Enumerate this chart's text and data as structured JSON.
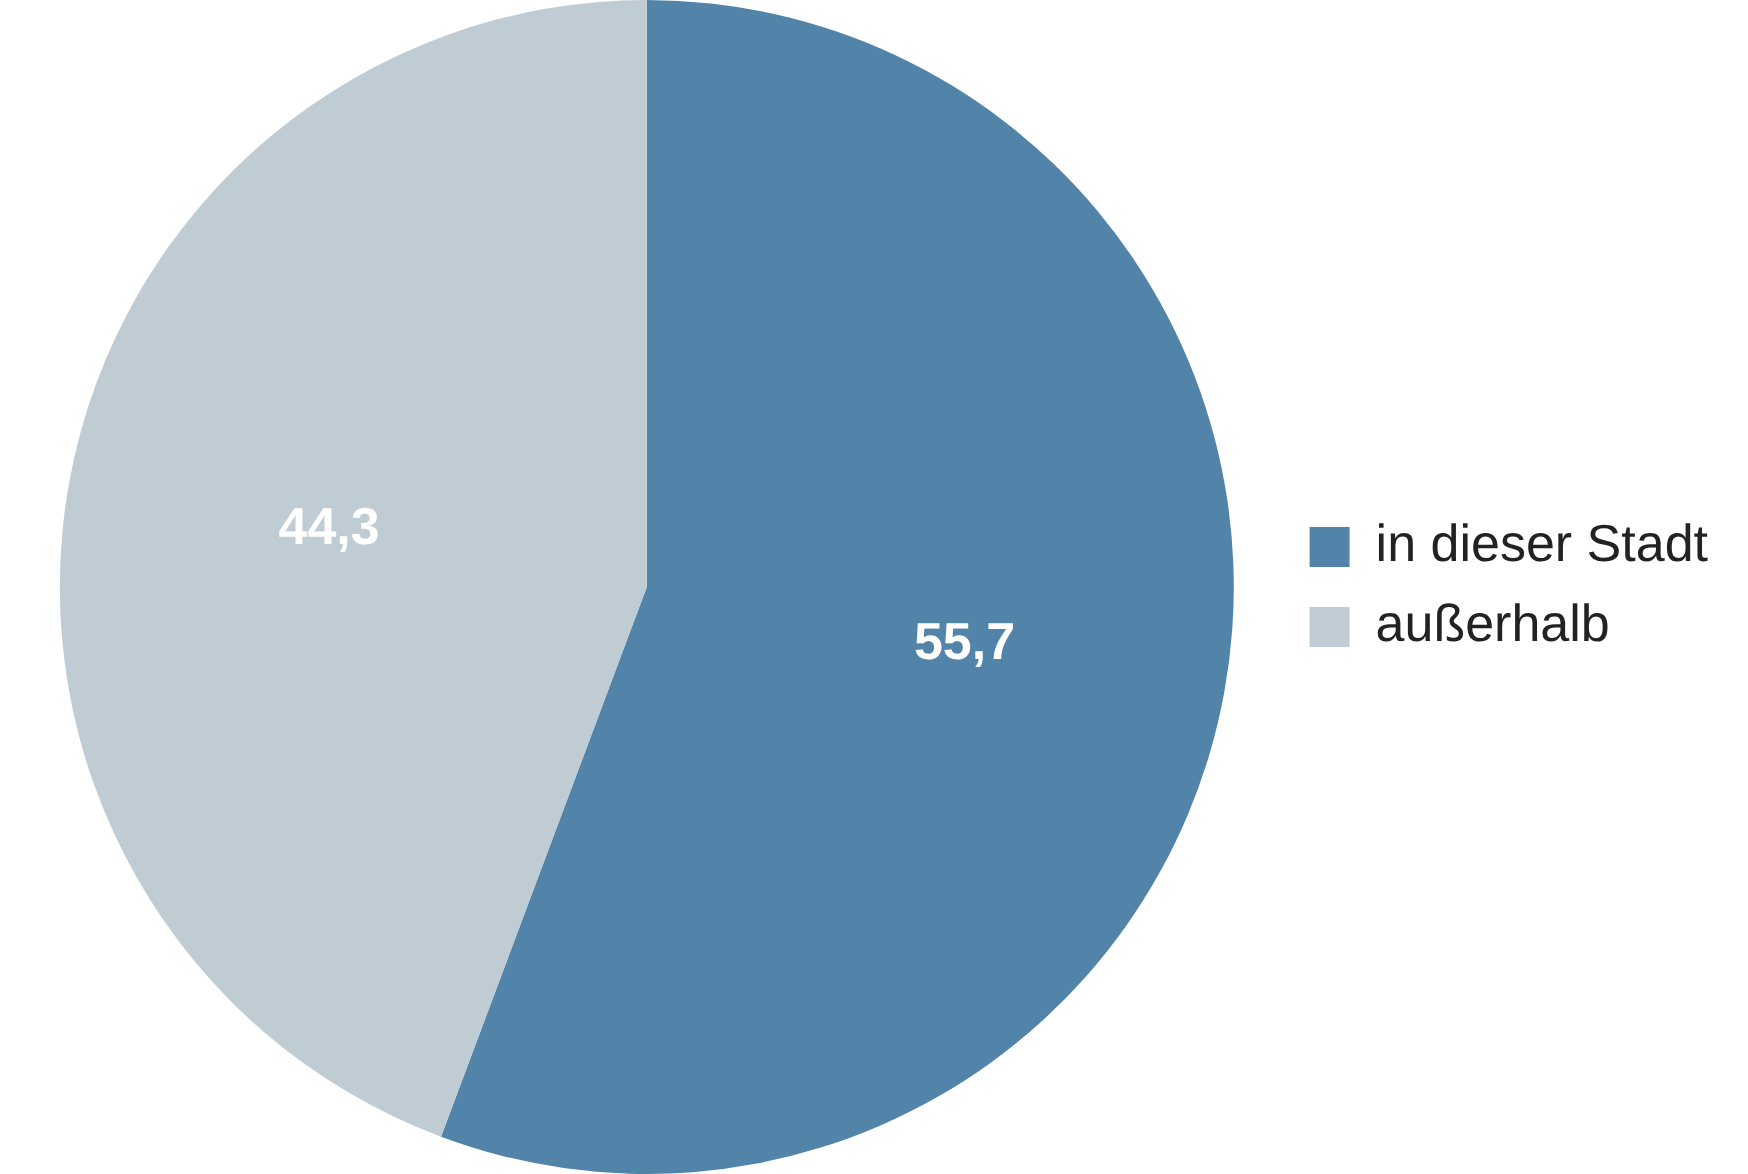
{
  "chart_data": {
    "type": "pie",
    "categories": [
      "in dieser Stadt",
      "außerhalb"
    ],
    "values": [
      55.7,
      44.3
    ],
    "colors": [
      "#5284aa",
      "#c0ccd4"
    ],
    "value_labels": [
      "55,7",
      "44,3"
    ],
    "legend": "right"
  }
}
